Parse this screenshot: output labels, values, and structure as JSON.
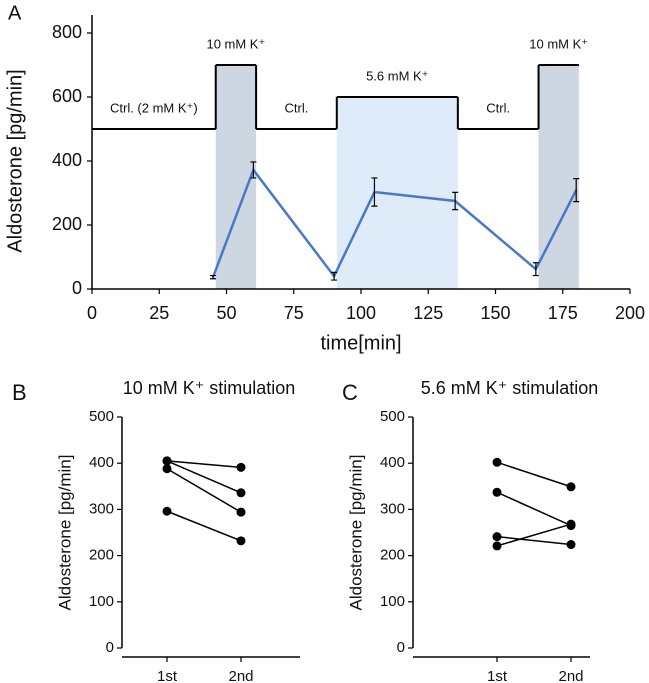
{
  "chart_data": [
    {
      "type": "line",
      "panel_label": "A",
      "ylabel": "Aldosterone [pg/min]",
      "xlabel": "time[min]",
      "xlim": [
        0,
        200
      ],
      "xticks": [
        0,
        25,
        50,
        75,
        100,
        125,
        150,
        175,
        200
      ],
      "ylim": [
        0,
        800
      ],
      "yticks": [
        0,
        200,
        400,
        600,
        800
      ],
      "protocol": {
        "color": "#000000",
        "segments": [
          {
            "label": "Ctrl. (2 mM K⁺)",
            "start": 0,
            "end": 46,
            "level": 500
          },
          {
            "label": "10 mM K⁺",
            "start": 46,
            "end": 61,
            "level": 700,
            "shade": "#ccd7e2"
          },
          {
            "label": "Ctrl.",
            "start": 61,
            "end": 91,
            "level": 500
          },
          {
            "label": "5.6 mM K⁺",
            "start": 91,
            "end": 136,
            "level": 600,
            "shade": "#deebf8"
          },
          {
            "label": "Ctrl.",
            "start": 136,
            "end": 166,
            "level": 500
          },
          {
            "label": "10 mM K⁺",
            "start": 166,
            "end": 181,
            "level": 700,
            "shade": "#ccd7e2"
          }
        ]
      },
      "x": [
        45,
        60,
        90,
        105,
        135,
        165,
        180
      ],
      "series": [
        {
          "color": "#4a78c8",
          "values": [
            37,
            372,
            40,
            303,
            275,
            62,
            309
          ],
          "errors": [
            5,
            25,
            12,
            44,
            27,
            20,
            36
          ]
        }
      ]
    },
    {
      "type": "line",
      "panel_label": "B",
      "title": "10 mM K⁺ stimulation",
      "ylabel": "Aldosterone [pg/min]",
      "categories": [
        "1st",
        "2nd"
      ],
      "ylim": [
        0,
        500
      ],
      "yticks": [
        0,
        100,
        200,
        300,
        400,
        500
      ],
      "series": [
        {
          "color": "#000000",
          "values": [
            405,
            391
          ]
        },
        {
          "color": "#000000",
          "values": [
            405,
            336
          ]
        },
        {
          "color": "#000000",
          "values": [
            388,
            294
          ]
        },
        {
          "color": "#000000",
          "values": [
            296,
            232
          ]
        }
      ]
    },
    {
      "type": "line",
      "panel_label": "C",
      "title": "5.6 mM K⁺ stimulation",
      "ylabel": "Aldosterone [pg/min]",
      "categories": [
        "1st",
        "2nd"
      ],
      "ylim": [
        0,
        500
      ],
      "yticks": [
        0,
        100,
        200,
        300,
        400,
        500
      ],
      "series": [
        {
          "color": "#000000",
          "values": [
            402,
            349
          ]
        },
        {
          "color": "#000000",
          "values": [
            337,
            265
          ]
        },
        {
          "color": "#000000",
          "values": [
            241,
            224
          ]
        },
        {
          "color": "#000000",
          "values": [
            221,
            268
          ]
        }
      ]
    }
  ]
}
